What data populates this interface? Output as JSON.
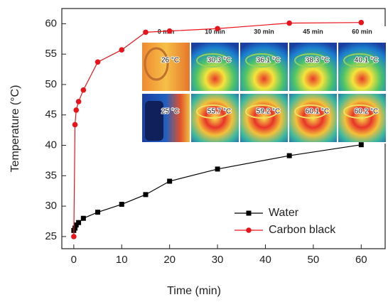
{
  "chart_data": {
    "type": "line",
    "xlabel": "Time (min)",
    "ylabel": "Temperature (°C)",
    "xlim": [
      -2.5,
      65
    ],
    "ylim": [
      23,
      62.5
    ],
    "xticks": [
      0,
      10,
      20,
      30,
      40,
      50,
      60
    ],
    "yticks": [
      25,
      30,
      35,
      40,
      45,
      50,
      55,
      60
    ],
    "legend": "lower right",
    "series": [
      {
        "name": "Water",
        "color": "#000000",
        "marker": "square",
        "x": [
          0,
          0.25,
          0.5,
          1,
          2,
          5,
          10,
          15,
          20,
          30,
          45,
          60
        ],
        "values": [
          26.0,
          26.4,
          26.9,
          27.3,
          28.0,
          29.0,
          30.3,
          31.9,
          34.1,
          36.1,
          38.3,
          40.1
        ]
      },
      {
        "name": "Carbon black",
        "color": "#e8141b",
        "marker": "circle",
        "x": [
          0,
          0.25,
          0.5,
          1,
          2,
          5,
          10,
          15,
          20,
          30,
          45,
          60
        ],
        "values": [
          25.0,
          43.4,
          45.8,
          47.2,
          49.1,
          53.7,
          55.7,
          58.6,
          58.8,
          59.2,
          60.1,
          60.2
        ]
      }
    ],
    "inset": {
      "times": [
        "0 min",
        "10 min",
        "30 min",
        "45 min",
        "60 min"
      ],
      "temps": [
        [
          "26 °C",
          "30.3 °C",
          "36.1 °C",
          "38.3 °C",
          "40.1 °C"
        ],
        [
          "25 °C",
          "55.7 °C",
          "59.2 °C",
          "60.1 °C",
          "60.2 °C"
        ]
      ]
    }
  }
}
